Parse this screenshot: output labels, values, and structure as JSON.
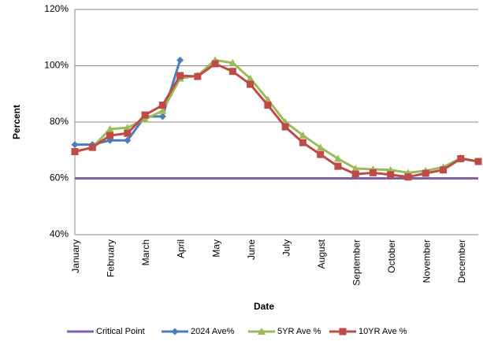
{
  "chart_data": {
    "type": "line",
    "x_label": "Date",
    "y_label": "Percent",
    "categories": [
      "January",
      null,
      "February",
      null,
      "March",
      null,
      "April",
      null,
      "May",
      null,
      "June",
      null,
      "July",
      null,
      "August",
      null,
      "September",
      null,
      "October",
      null,
      "November",
      null,
      "December",
      null
    ],
    "series": [
      {
        "name": "Critical Point",
        "color": "#7f62a8",
        "marker": "none",
        "values": [
          60,
          60,
          60,
          60,
          60,
          60,
          60,
          60,
          60,
          60,
          60,
          60,
          60,
          60,
          60,
          60,
          60,
          60,
          60,
          60,
          60,
          60,
          60,
          60
        ]
      },
      {
        "name": "2024 Ave%",
        "color": "#4a7ebb",
        "marker": "diamond",
        "values": [
          72,
          72,
          73.5,
          73.5,
          82,
          82,
          102,
          null,
          null,
          null,
          null,
          null,
          null,
          null,
          null,
          null,
          null,
          null,
          null,
          null,
          null,
          null,
          null,
          null
        ]
      },
      {
        "name": "5YR Ave %",
        "color": "#9bbb59",
        "marker": "triangle",
        "values": [
          69.5,
          71,
          77.5,
          78,
          81,
          84,
          95.5,
          96.5,
          102,
          101,
          95.5,
          88,
          80,
          75.3,
          71,
          67,
          63.5,
          63.2,
          63,
          62,
          62.7,
          64,
          67.2,
          66
        ]
      },
      {
        "name": "10YR Ave %",
        "color": "#be4b48",
        "marker": "square",
        "values": [
          69.5,
          71,
          75.2,
          76,
          82.5,
          86,
          96.5,
          96.2,
          100.7,
          98,
          93.4,
          86,
          78.3,
          72.7,
          68.5,
          64.3,
          61.5,
          62,
          61.3,
          60.5,
          61.8,
          63,
          67,
          66
        ]
      }
    ],
    "ylim": [
      40,
      120
    ],
    "yticks": [
      {
        "value": 40,
        "label": "40%"
      },
      {
        "value": 60,
        "label": "60%"
      },
      {
        "value": 80,
        "label": "80%"
      },
      {
        "value": 100,
        "label": "100%"
      },
      {
        "value": 120,
        "label": "120%"
      }
    ],
    "grid": true,
    "legend": "bottom"
  }
}
